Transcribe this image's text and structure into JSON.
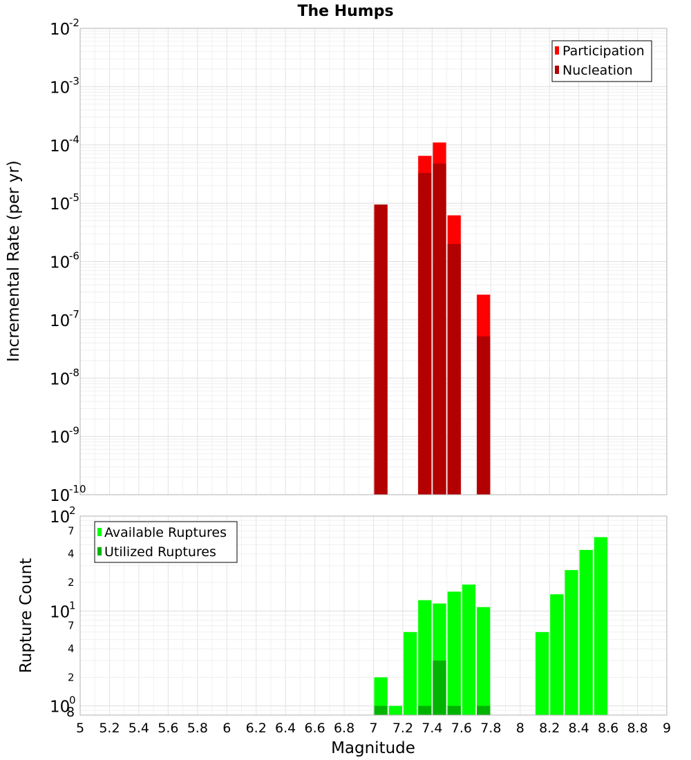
{
  "chart_data": [
    {
      "type": "bar",
      "title": "The Humps",
      "xlabel": "",
      "ylabel": "Incremental Rate (per yr)",
      "yscale": "log",
      "ylim": [
        1e-10,
        0.01
      ],
      "xlim": [
        5,
        9
      ],
      "bar_width": 0.1,
      "grid": true,
      "legend_position": "top-right",
      "y_ticks": [
        {
          "base": "10",
          "exp": "-10",
          "value": 1e-10
        },
        {
          "base": "10",
          "exp": "-9",
          "value": 1e-09
        },
        {
          "base": "10",
          "exp": "-8",
          "value": 1e-08
        },
        {
          "base": "10",
          "exp": "-7",
          "value": 1e-07
        },
        {
          "base": "10",
          "exp": "-6",
          "value": 1e-06
        },
        {
          "base": "10",
          "exp": "-5",
          "value": 1e-05
        },
        {
          "base": "10",
          "exp": "-4",
          "value": 0.0001
        },
        {
          "base": "10",
          "exp": "-3",
          "value": 0.001
        },
        {
          "base": "10",
          "exp": "-2",
          "value": 0.01
        }
      ],
      "series": [
        {
          "name": "Participation",
          "color": "#ff0000",
          "x": [
            7.05,
            7.35,
            7.45,
            7.55,
            7.75
          ],
          "values": [
            9.5e-06,
            6.5e-05,
            0.00011,
            6.2e-06,
            2.7e-07
          ]
        },
        {
          "name": "Nucleation",
          "color": "#b30000",
          "x": [
            7.05,
            7.35,
            7.45,
            7.55,
            7.75
          ],
          "values": [
            9.5e-06,
            3.3e-05,
            4.8e-05,
            2e-06,
            5.2e-08
          ]
        }
      ]
    },
    {
      "type": "bar",
      "title": "",
      "xlabel": "Magnitude",
      "ylabel": "Rupture Count",
      "yscale": "log",
      "ylim": [
        0.8,
        100
      ],
      "xlim": [
        5,
        9
      ],
      "bar_width": 0.1,
      "grid": true,
      "legend_position": "top-left",
      "x_ticks": [
        "5",
        "5.2",
        "5.4",
        "5.6",
        "5.8",
        "6",
        "6.2",
        "6.4",
        "6.6",
        "6.8",
        "7",
        "7.2",
        "7.4",
        "7.6",
        "7.8",
        "8",
        "8.2",
        "8.4",
        "8.6",
        "8.8",
        "9"
      ],
      "y_major_ticks": [
        {
          "base": "10",
          "exp": "0",
          "value": 1
        },
        {
          "base": "10",
          "exp": "1",
          "value": 10
        },
        {
          "base": "10",
          "exp": "2",
          "value": 100
        }
      ],
      "y_minor_ticks": [
        {
          "label": "8",
          "value": 0.8
        },
        {
          "label": "2",
          "value": 2
        },
        {
          "label": "4",
          "value": 4
        },
        {
          "label": "7",
          "value": 7
        },
        {
          "label": "2",
          "value": 20
        },
        {
          "label": "4",
          "value": 40
        },
        {
          "label": "7",
          "value": 70
        }
      ],
      "series": [
        {
          "name": "Available Ruptures",
          "color": "#00ff00",
          "x": [
            7.05,
            7.15,
            7.25,
            7.35,
            7.45,
            7.55,
            7.65,
            7.75,
            8.15,
            8.25,
            8.35,
            8.45,
            8.55
          ],
          "values": [
            2,
            1,
            6,
            13,
            12,
            16,
            19,
            11,
            6,
            15,
            27,
            44,
            60
          ]
        },
        {
          "name": "Utilized Ruptures",
          "color": "#00b300",
          "x": [
            7.05,
            7.35,
            7.45,
            7.55,
            7.75
          ],
          "values": [
            1,
            1,
            3,
            1,
            1
          ]
        }
      ]
    }
  ]
}
